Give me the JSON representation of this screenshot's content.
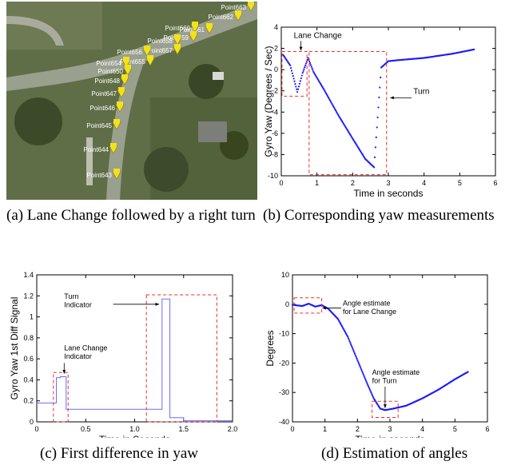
{
  "captions": {
    "a": "(a) Lane Change followed by a right turn",
    "b": "(b) Corresponding yaw measurements",
    "c": "(c) First difference in yaw",
    "d": "(d) Estimation of angles"
  },
  "map": {
    "points": [
      "Point663",
      "Point662",
      "Point661",
      "Point660",
      "Point659",
      "Point658",
      "Point657",
      "Point656",
      "Point655",
      "Point654",
      "Point650",
      "Point648",
      "Point647",
      "Point646",
      "Point645",
      "Point644",
      "Point643"
    ],
    "pin_color": "#f2e21a"
  },
  "colors": {
    "series": "#1a1aff",
    "box": "#e8302a"
  },
  "chart_data": [
    {
      "type": "scatter",
      "id": "b",
      "xlabel": "Time in seconds",
      "ylabel": "Gyro Yaw (Degrees / Sec)",
      "xlim": [
        0,
        6
      ],
      "ylim": [
        -10,
        4
      ],
      "xticks": [
        0,
        1,
        2,
        3,
        4,
        5,
        6
      ],
      "yticks": [
        -10,
        -8,
        -6,
        -4,
        -2,
        0,
        2,
        4
      ],
      "x": [
        0.05,
        0.25,
        0.45,
        0.6,
        0.75,
        0.9,
        1.2,
        1.6,
        2.0,
        2.35,
        2.6,
        2.8,
        3.0,
        3.3,
        4.0,
        4.8,
        5.4
      ],
      "y": [
        1.4,
        0.4,
        -2.1,
        -0.3,
        1.1,
        -0.2,
        -1.9,
        -4.3,
        -6.5,
        -8.4,
        -9.2,
        0.2,
        0.8,
        0.9,
        1.1,
        1.5,
        1.9
      ],
      "annotations": [
        "Lane Change",
        "Turn"
      ]
    },
    {
      "type": "line",
      "id": "c",
      "xlabel": "Time in Seconds",
      "ylabel": "Gyro Yaw 1st Diff Signal",
      "xlim": [
        0,
        2.0
      ],
      "ylim": [
        0,
        1.4
      ],
      "xticks": [
        0,
        0.5,
        1.0,
        1.5,
        2.0
      ],
      "yticks": [
        0,
        0.2,
        0.4,
        0.6,
        0.8,
        1,
        1.2,
        1.4
      ],
      "x": [
        0.0,
        0.2,
        0.2,
        0.24,
        0.24,
        0.3,
        0.3,
        1.28,
        1.28,
        1.36,
        1.36,
        1.5,
        1.5,
        2.0
      ],
      "y": [
        0.18,
        0.18,
        0.42,
        0.42,
        0.43,
        0.43,
        0.12,
        0.12,
        1.17,
        1.17,
        0.04,
        0.04,
        0.01,
        0.01
      ],
      "annotations": [
        "Turn Indicator",
        "Lane Change Indicator"
      ]
    },
    {
      "type": "scatter",
      "id": "d",
      "xlabel": "Time in seconds",
      "ylabel": "Degrees",
      "xlim": [
        0,
        6
      ],
      "ylim": [
        -40,
        10
      ],
      "xticks": [
        0,
        1,
        2,
        3,
        4,
        5,
        6
      ],
      "yticks": [
        -40,
        -30,
        -20,
        -10,
        0,
        10
      ],
      "x": [
        0.0,
        0.3,
        0.5,
        0.7,
        0.9,
        1.1,
        1.4,
        1.7,
        2.0,
        2.3,
        2.5,
        2.7,
        2.85,
        3.1,
        3.5,
        4.0,
        4.5,
        5.0,
        5.4
      ],
      "y": [
        -0.2,
        -0.6,
        0.2,
        -0.8,
        -0.3,
        -1.5,
        -5,
        -11,
        -19,
        -27,
        -32,
        -35.5,
        -36,
        -35.5,
        -34.5,
        -32,
        -29,
        -25.5,
        -23
      ],
      "annotations": [
        "Angle estimate for Lane Change",
        "Angle estimate for Turn"
      ]
    }
  ]
}
